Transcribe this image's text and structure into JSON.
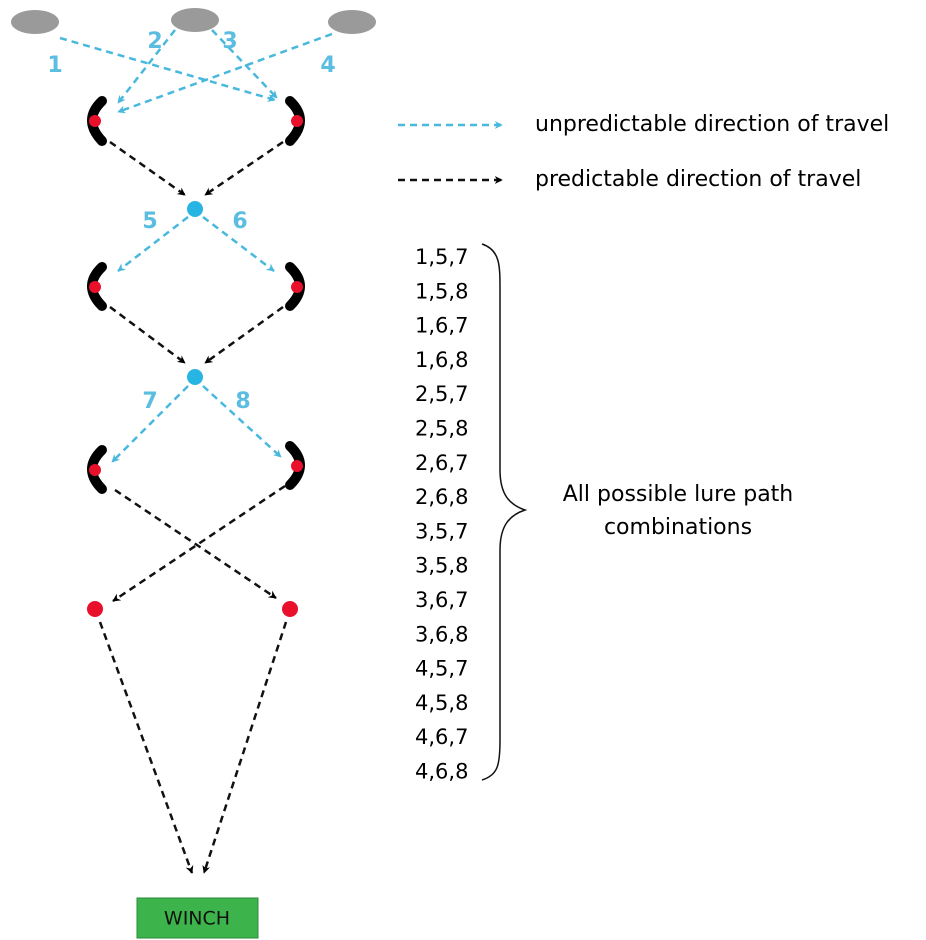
{
  "paths": [
    "1",
    "2",
    "3",
    "4",
    "5",
    "6",
    "7",
    "8"
  ],
  "legend": [
    "unpredictable direction of travel",
    "predictable direction of travel"
  ],
  "combinations": [
    "1,5,7",
    "1,5,8",
    "1,6,7",
    "1,6,8",
    "2,5,7",
    "2,5,8",
    "2,6,7",
    "2,6,8",
    "3,5,7",
    "3,5,8",
    "3,6,7",
    "3,6,8",
    "4,5,7",
    "4,5,8",
    "4,6,7",
    "4,6,8"
  ],
  "brace_label": [
    "All possible lure path",
    "combinations"
  ],
  "winch": "WINCH"
}
